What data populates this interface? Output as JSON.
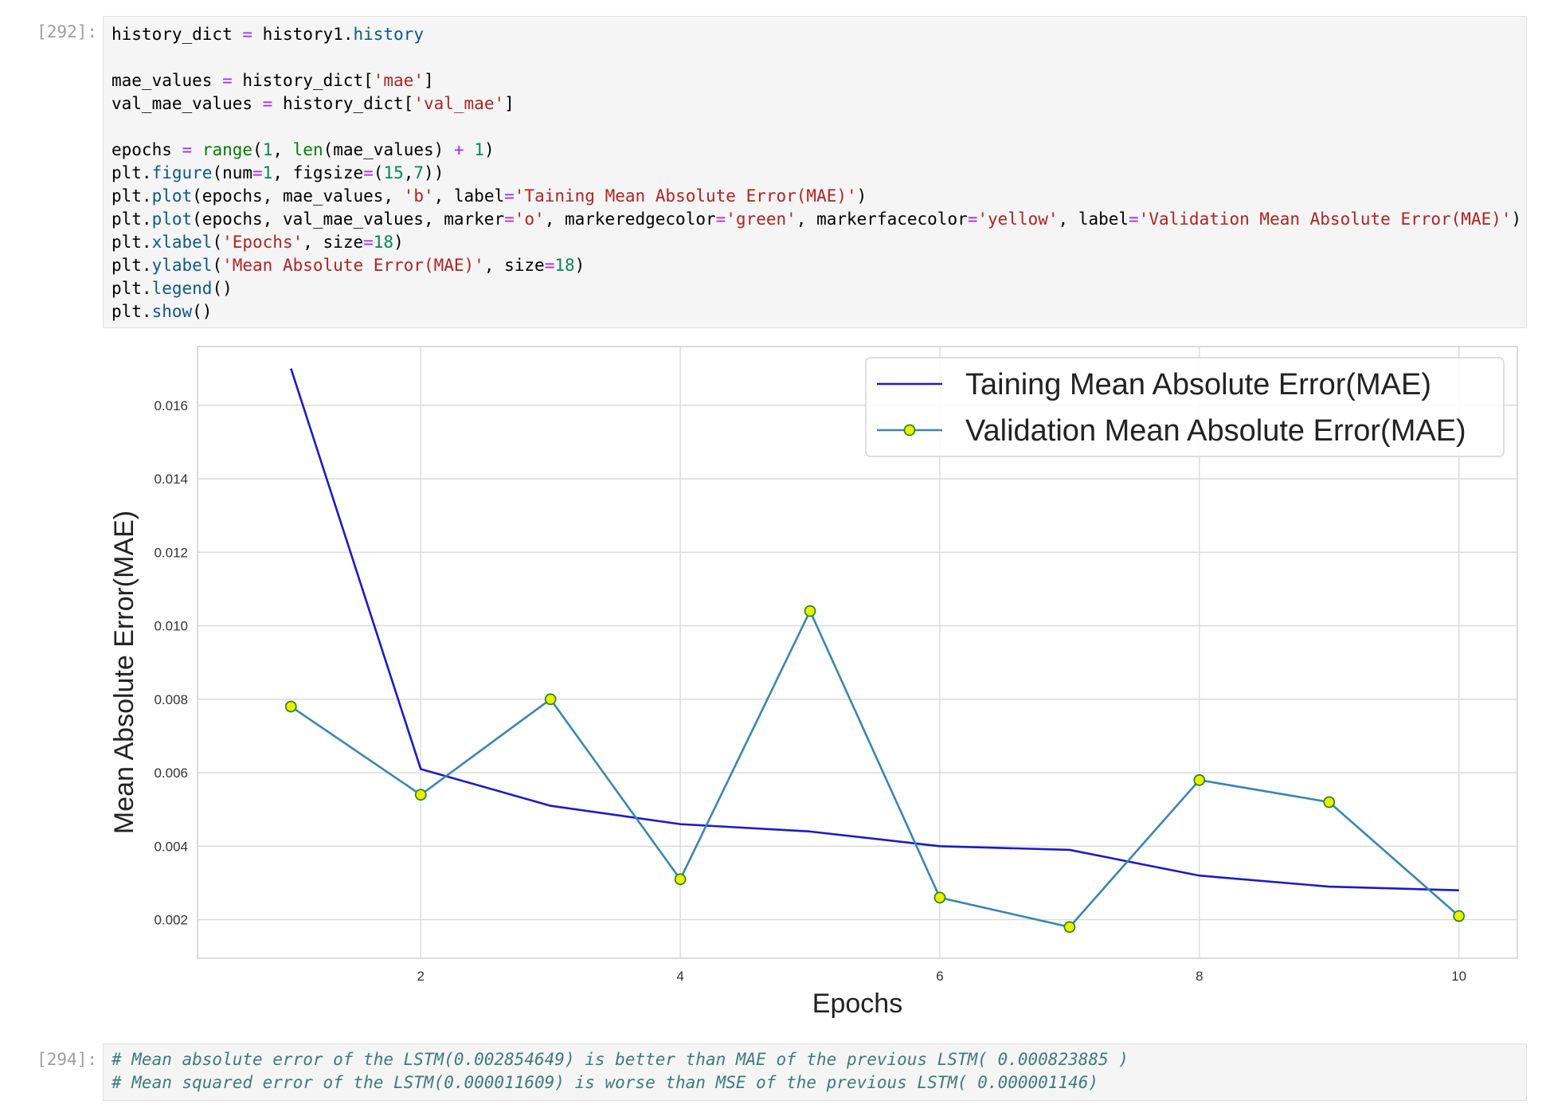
{
  "cells": [
    {
      "prompt": "[292]:",
      "code_lines": [
        [
          {
            "t": "history_dict "
          },
          {
            "t": "=",
            "c": "o"
          },
          {
            "t": " history1."
          },
          {
            "t": "history",
            "c": "k"
          }
        ],
        [],
        [
          {
            "t": "mae_values "
          },
          {
            "t": "=",
            "c": "o"
          },
          {
            "t": " history_dict["
          },
          {
            "t": "'mae'",
            "c": "s"
          },
          {
            "t": "]"
          }
        ],
        [
          {
            "t": "val_mae_values "
          },
          {
            "t": "=",
            "c": "o"
          },
          {
            "t": " history_dict["
          },
          {
            "t": "'val_mae'",
            "c": "s"
          },
          {
            "t": "]"
          }
        ],
        [],
        [
          {
            "t": "epochs "
          },
          {
            "t": "=",
            "c": "o"
          },
          {
            "t": " "
          },
          {
            "t": "range",
            "c": "b"
          },
          {
            "t": "("
          },
          {
            "t": "1",
            "c": "n"
          },
          {
            "t": ", "
          },
          {
            "t": "len",
            "c": "b"
          },
          {
            "t": "(mae_values) "
          },
          {
            "t": "+",
            "c": "o"
          },
          {
            "t": " "
          },
          {
            "t": "1",
            "c": "n"
          },
          {
            "t": ")"
          }
        ],
        [
          {
            "t": "plt."
          },
          {
            "t": "figure",
            "c": "k"
          },
          {
            "t": "(num"
          },
          {
            "t": "=",
            "c": "o"
          },
          {
            "t": "1",
            "c": "n"
          },
          {
            "t": ", figsize"
          },
          {
            "t": "=",
            "c": "o"
          },
          {
            "t": "("
          },
          {
            "t": "15",
            "c": "n"
          },
          {
            "t": ","
          },
          {
            "t": "7",
            "c": "n"
          },
          {
            "t": "))"
          }
        ],
        [
          {
            "t": "plt."
          },
          {
            "t": "plot",
            "c": "k"
          },
          {
            "t": "(epochs, mae_values, "
          },
          {
            "t": "'b'",
            "c": "s"
          },
          {
            "t": ", label"
          },
          {
            "t": "=",
            "c": "o"
          },
          {
            "t": "'Taining Mean Absolute Error(MAE)'",
            "c": "s"
          },
          {
            "t": ")"
          }
        ],
        [
          {
            "t": "plt."
          },
          {
            "t": "plot",
            "c": "k"
          },
          {
            "t": "(epochs, val_mae_values, marker"
          },
          {
            "t": "=",
            "c": "o"
          },
          {
            "t": "'o'",
            "c": "s"
          },
          {
            "t": ", markeredgecolor"
          },
          {
            "t": "=",
            "c": "o"
          },
          {
            "t": "'green'",
            "c": "s"
          },
          {
            "t": ", markerfacecolor"
          },
          {
            "t": "=",
            "c": "o"
          },
          {
            "t": "'yellow'",
            "c": "s"
          },
          {
            "t": ", label"
          },
          {
            "t": "=",
            "c": "o"
          },
          {
            "t": "'Validation Mean Absolute Error(MAE)'",
            "c": "s"
          },
          {
            "t": ")"
          }
        ],
        [
          {
            "t": "plt."
          },
          {
            "t": "xlabel",
            "c": "k"
          },
          {
            "t": "("
          },
          {
            "t": "'Epochs'",
            "c": "s"
          },
          {
            "t": ", size"
          },
          {
            "t": "=",
            "c": "o"
          },
          {
            "t": "18",
            "c": "n"
          },
          {
            "t": ")"
          }
        ],
        [
          {
            "t": "plt."
          },
          {
            "t": "ylabel",
            "c": "k"
          },
          {
            "t": "("
          },
          {
            "t": "'Mean Absolute Error(MAE)'",
            "c": "s"
          },
          {
            "t": ", size"
          },
          {
            "t": "=",
            "c": "o"
          },
          {
            "t": "18",
            "c": "n"
          },
          {
            "t": ")"
          }
        ],
        [
          {
            "t": "plt."
          },
          {
            "t": "legend",
            "c": "k"
          },
          {
            "t": "()"
          }
        ],
        [
          {
            "t": "plt."
          },
          {
            "t": "show",
            "c": "k"
          },
          {
            "t": "()"
          }
        ]
      ]
    },
    {
      "prompt": "[294]:",
      "code_lines": [
        [
          {
            "t": "# Mean absolute error of the LSTM(0.002854649) is better than MAE of the previous LSTM( 0.000823885 )",
            "c": "c"
          }
        ],
        [
          {
            "t": "# Mean squared error of the LSTM(0.000011609) is worse than MSE of the previous LSTM( 0.000001146)",
            "c": "c"
          }
        ]
      ]
    }
  ],
  "chart_data": {
    "type": "line",
    "xlabel": "Epochs",
    "ylabel": "Mean Absolute Error(MAE)",
    "x": [
      1,
      2,
      3,
      4,
      5,
      6,
      7,
      8,
      9,
      10
    ],
    "xlim": [
      0.28,
      10.45
    ],
    "ylim": [
      0.00095,
      0.0176
    ],
    "xticks": [
      2,
      4,
      6,
      8,
      10
    ],
    "yticks": [
      0.002,
      0.004,
      0.006,
      0.008,
      0.01,
      0.012,
      0.014,
      0.016
    ],
    "ytick_labels": [
      "0.002",
      "0.004",
      "0.006",
      "0.008",
      "0.010",
      "0.012",
      "0.014",
      "0.016"
    ],
    "grid": true,
    "legend_position": "top-right",
    "series": [
      {
        "name": "Taining Mean Absolute Error(MAE)",
        "color": "#1a1acc",
        "marker": "none",
        "values": [
          0.017,
          0.0061,
          0.0051,
          0.0046,
          0.0044,
          0.004,
          0.0039,
          0.0032,
          0.0029,
          0.0028
        ]
      },
      {
        "name": "Validation Mean Absolute Error(MAE)",
        "color": "#3a86b4",
        "marker": "o",
        "marker_edge": "#2e8b1e",
        "marker_face": "#ecf000",
        "values": [
          0.0078,
          0.0054,
          0.008,
          0.0031,
          0.0104,
          0.0026,
          0.0018,
          0.0058,
          0.0052,
          0.0021
        ]
      }
    ]
  }
}
